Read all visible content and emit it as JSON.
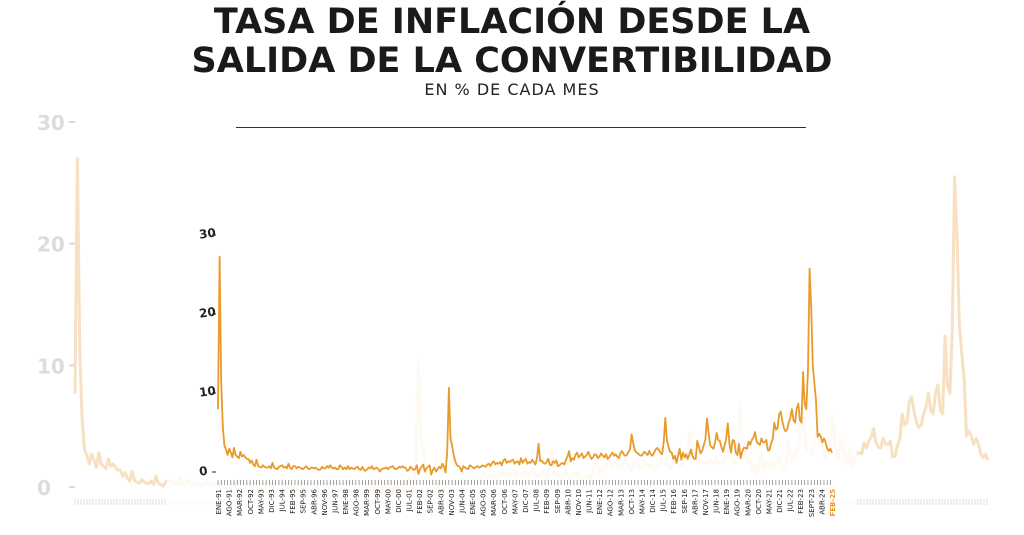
{
  "header": {
    "title_line_1": "TASA DE INFLACIÓN DESDE LA",
    "title_line_2": "SALIDA DE LA CONVERTIBILIDAD",
    "subtitle": "EN % DE CADA MES"
  },
  "colors": {
    "line": "#e89a2b",
    "ghost_line": "#f3c690",
    "last_label": "#e89a2b",
    "axis_text": "#222222"
  },
  "chart_data": {
    "type": "line",
    "title": "",
    "xlabel": "",
    "ylabel": "",
    "ylim": [
      0,
      30
    ],
    "yticks": [
      0,
      10,
      20,
      30
    ],
    "grid": false,
    "x_tick_labels": [
      "ENE-91",
      "AGO-91",
      "MAR-92",
      "OCT-92",
      "MAY-93",
      "DIC-93",
      "JUL-94",
      "FEB-95",
      "SEP-95",
      "ABR-96",
      "NOV-96",
      "JUN-97",
      "ENE-98",
      "AGO-98",
      "MAR-99",
      "OCT-99",
      "MAY-00",
      "DIC-00",
      "JUL-01",
      "FEB-02",
      "SEP-02",
      "ABR-03",
      "NOV-03",
      "JUN-04",
      "ENE-05",
      "AGO-05",
      "MAR-06",
      "OCT-06",
      "MAY-07",
      "DIC-07",
      "JUL-08",
      "FEB-09",
      "SEP-09",
      "ABR-10",
      "NOV-10",
      "JUN-11",
      "ENE-12",
      "AGO-12",
      "MAR-13",
      "OCT-13",
      "MAY-14",
      "DIC-14",
      "JUL-15",
      "FEB-16",
      "SEP-16",
      "ABR-17",
      "NOV-17",
      "JUN-18",
      "ENE-19",
      "AGO-19",
      "MAR-20",
      "OCT-20",
      "MAY-21",
      "DIC-21",
      "JUL-22",
      "FEB-23",
      "SEPT-23",
      "ABR-24",
      "FEB-25"
    ],
    "series": [
      {
        "values": [
          7.7,
          27.0,
          11.0,
          5.5,
          3.1,
          2.6,
          1.9,
          2.7,
          2.2,
          1.6,
          2.8,
          1.9,
          1.7,
          1.5,
          2.3,
          1.7,
          1.9,
          1.6,
          1.4,
          1.4,
          0.9,
          1.2,
          0.7,
          0.5,
          1.3,
          0.5,
          0.4,
          0.3,
          0.6,
          0.4,
          0.3,
          0.3,
          0.5,
          0.2,
          0.9,
          0.3,
          0.2,
          0.1,
          0.4,
          0.5,
          0.6,
          0.3,
          0.4,
          0.2,
          0.8,
          0.3,
          0.1,
          0.5,
          0.5,
          0.2,
          0.4,
          0.3,
          0.2,
          0.1,
          0.3,
          0.5,
          0.2,
          0.1,
          0.3,
          0.3,
          0.2,
          0.3,
          0.1,
          0.0,
          0.1,
          0.4,
          0.2,
          0.2,
          0.5,
          0.3,
          0.6,
          0.3,
          0.2,
          0.3,
          0.1,
          0.1,
          0.6,
          0.4,
          0.1,
          0.3,
          0.1,
          0.5,
          0.1,
          0.3,
          0.2,
          0.1,
          0.3,
          0.4,
          0.1,
          0.0,
          0.4,
          0.0,
          -0.1,
          0.1,
          0.3,
          0.2,
          0.5,
          0.1,
          0.2,
          0.3,
          0.1,
          -0.2,
          0.1,
          0.2,
          0.2,
          0.3,
          0.1,
          0.3,
          0.4,
          0.5,
          0.2,
          0.1,
          0.2,
          0.4,
          0.3,
          0.5,
          0.3,
          0.3,
          -0.1,
          0.0,
          0.4,
          0.2,
          0.0,
          0.1,
          0.6,
          -0.5,
          0.1,
          0.4,
          0.7,
          -0.2,
          0.2,
          0.4,
          0.6,
          -0.6,
          0.0,
          0.3,
          -0.2,
          0.1,
          0.4,
          0.2,
          0.8,
          0.4,
          -0.3,
          2.3,
          10.4,
          4.0,
          3.1,
          1.9,
          1.1,
          0.6,
          0.5,
          0.3,
          -0.2,
          0.5,
          0.3,
          0.2,
          0.1,
          0.6,
          0.5,
          0.3,
          0.2,
          0.4,
          0.5,
          0.3,
          0.4,
          0.6,
          0.5,
          0.4,
          0.7,
          0.8,
          0.5,
          0.9,
          1.1,
          0.7,
          0.9,
          0.8,
          1.0,
          0.6,
          1.2,
          1.4,
          0.9,
          1.1,
          1.0,
          1.2,
          1.3,
          0.8,
          1.0,
          1.1,
          0.7,
          1.5,
          0.9,
          1.2,
          1.4,
          0.8,
          1.0,
          0.9,
          1.3,
          1.0,
          0.7,
          1.5,
          3.3,
          1.1,
          1.2,
          0.9,
          0.8,
          1.0,
          1.4,
          0.7,
          0.6,
          1.1,
          0.9,
          1.2,
          0.5,
          0.6,
          0.8,
          0.9,
          0.7,
          1.3,
          1.7,
          2.4,
          1.1,
          1.5,
          1.3,
          1.9,
          2.2,
          1.6,
          1.8,
          2.1,
          1.5,
          1.7,
          1.9,
          2.3,
          1.8,
          1.4,
          1.6,
          2.0,
          1.9,
          1.5,
          1.7,
          2.1,
          1.8,
          1.6,
          2.0,
          1.4,
          1.6,
          1.9,
          2.2,
          1.8,
          2.0,
          1.7,
          1.5,
          2.1,
          2.4,
          2.0,
          1.8,
          1.9,
          2.3,
          2.6,
          4.5,
          3.4,
          2.5,
          2.2,
          2.1,
          1.9,
          1.8,
          2.0,
          2.3,
          2.1,
          1.9,
          2.4,
          2.0,
          1.8,
          2.2,
          2.6,
          2.8,
          2.5,
          2.2,
          2.0,
          3.5,
          6.6,
          3.8,
          2.9,
          2.3,
          2.2,
          1.4,
          1.8,
          0.9,
          1.8,
          2.7,
          1.3,
          2.2,
          1.6,
          2.0,
          1.4,
          1.9,
          2.6,
          1.8,
          1.4,
          1.4,
          3.7,
          2.9,
          2.1,
          2.4,
          3.1,
          3.9,
          6.5,
          4.7,
          3.1,
          2.9,
          2.7,
          3.4,
          4.7,
          3.8,
          3.7,
          2.9,
          2.3,
          3.1,
          4.0,
          5.9,
          3.3,
          2.2,
          3.8,
          3.7,
          2.2,
          1.9,
          3.3,
          1.5,
          2.3,
          2.8,
          2.8,
          2.7,
          3.6,
          3.2,
          3.8,
          4.1,
          4.8,
          3.6,
          3.3,
          3.2,
          4.0,
          3.5,
          3.5,
          3.8,
          2.5,
          2.5,
          3.4,
          3.9,
          6.0,
          5.1,
          5.3,
          7.0,
          7.4,
          6.2,
          5.3,
          4.9,
          5.1,
          6.0,
          6.6,
          7.7,
          6.3,
          6.0,
          7.8,
          8.4,
          6.3,
          6.0,
          12.4,
          8.3,
          7.7,
          12.7,
          25.5,
          20.6,
          13.2,
          11.0,
          8.8,
          4.2,
          4.6,
          4.2,
          3.5,
          4.0,
          3.5,
          2.7,
          2.4,
          2.7,
          2.2
        ]
      }
    ]
  }
}
